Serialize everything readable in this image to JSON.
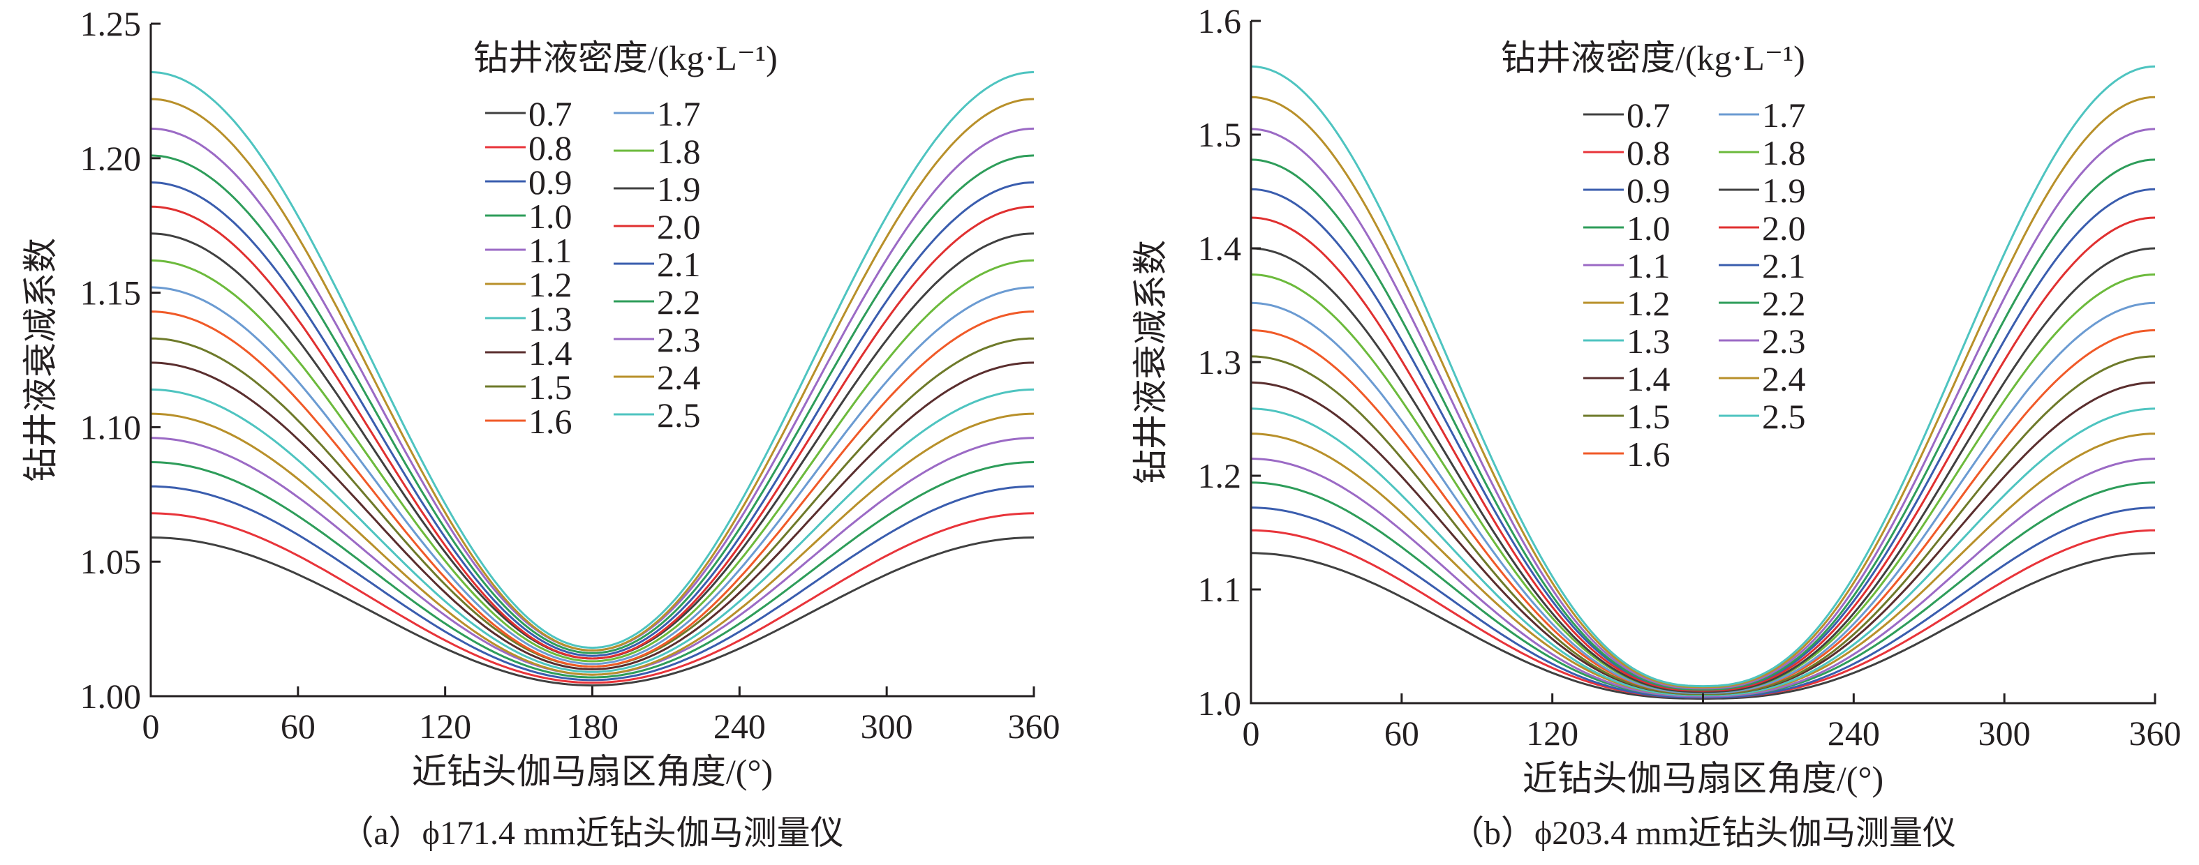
{
  "chart_data": [
    {
      "type": "line",
      "caption": "（a）ϕ171.4 mm近钻头伽马测量仪",
      "xlabel": "近钻头伽马扇区角度/(°)",
      "ylabel": "钻井液衰减系数",
      "xlim": [
        0,
        360
      ],
      "ylim": [
        1.0,
        1.25
      ],
      "xticks": [
        "0",
        "60",
        "120",
        "180",
        "240",
        "300",
        "360"
      ],
      "yticks": [
        "1.00",
        "1.05",
        "1.10",
        "1.15",
        "1.20",
        "1.25"
      ],
      "legend_title": "钻井液密度/(kg·L⁻¹)",
      "legend_position": "top-center",
      "shape": "cosine, max at 0° and 360°, min at 180°",
      "series": [
        {
          "name": "0.7",
          "color": "#404040",
          "max": 1.059,
          "min": 1.004
        },
        {
          "name": "0.8",
          "color": "#e8343a",
          "max": 1.068,
          "min": 1.005
        },
        {
          "name": "0.9",
          "color": "#3a5dae",
          "max": 1.078,
          "min": 1.006
        },
        {
          "name": "1.0",
          "color": "#2e9d5a",
          "max": 1.087,
          "min": 1.007
        },
        {
          "name": "1.1",
          "color": "#9b6ac5",
          "max": 1.096,
          "min": 1.008
        },
        {
          "name": "1.2",
          "color": "#b8902a",
          "max": 1.105,
          "min": 1.008
        },
        {
          "name": "1.3",
          "color": "#4ec4c0",
          "max": 1.114,
          "min": 1.009
        },
        {
          "name": "1.4",
          "color": "#5a2e2e",
          "max": 1.124,
          "min": 1.01
        },
        {
          "name": "1.5",
          "color": "#6e7a2a",
          "max": 1.133,
          "min": 1.011
        },
        {
          "name": "1.6",
          "color": "#f05a28",
          "max": 1.143,
          "min": 1.011
        },
        {
          "name": "1.7",
          "color": "#6b9bd2",
          "max": 1.152,
          "min": 1.012
        },
        {
          "name": "1.8",
          "color": "#6cba3c",
          "max": 1.162,
          "min": 1.013
        },
        {
          "name": "1.9",
          "color": "#404040",
          "max": 1.172,
          "min": 1.014
        },
        {
          "name": "2.0",
          "color": "#e03030",
          "max": 1.182,
          "min": 1.014
        },
        {
          "name": "2.1",
          "color": "#3a5dae",
          "max": 1.191,
          "min": 1.015
        },
        {
          "name": "2.2",
          "color": "#2e9d5a",
          "max": 1.201,
          "min": 1.016
        },
        {
          "name": "2.3",
          "color": "#9b6ac5",
          "max": 1.211,
          "min": 1.017
        },
        {
          "name": "2.4",
          "color": "#b8902a",
          "max": 1.222,
          "min": 1.017
        },
        {
          "name": "2.5",
          "color": "#4ec4c0",
          "max": 1.232,
          "min": 1.018
        }
      ]
    },
    {
      "type": "line",
      "caption": "（b）ϕ203.4 mm近钻头伽马测量仪",
      "xlabel": "近钻头伽马扇区角度/(°)",
      "ylabel": "钻井液衰减系数",
      "xlim": [
        0,
        360
      ],
      "ylim": [
        1.0,
        1.6
      ],
      "xticks": [
        "0",
        "60",
        "120",
        "180",
        "240",
        "300",
        "360"
      ],
      "yticks": [
        "1.0",
        "1.1",
        "1.2",
        "1.3",
        "1.4",
        "1.5",
        "1.6"
      ],
      "legend_title": "钻井液密度/(kg·L⁻¹)",
      "legend_position": "top-center",
      "shape": "cosine, max at 0° and 360°, min at 180°",
      "series": [
        {
          "name": "0.7",
          "color": "#404040",
          "max": 1.132,
          "min": 1.004
        },
        {
          "name": "0.8",
          "color": "#e8343a",
          "max": 1.152,
          "min": 1.005
        },
        {
          "name": "0.9",
          "color": "#3a5dae",
          "max": 1.172,
          "min": 1.005
        },
        {
          "name": "1.0",
          "color": "#2e9d5a",
          "max": 1.194,
          "min": 1.006
        },
        {
          "name": "1.1",
          "color": "#9b6ac5",
          "max": 1.215,
          "min": 1.006
        },
        {
          "name": "1.2",
          "color": "#b8902a",
          "max": 1.237,
          "min": 1.007
        },
        {
          "name": "1.3",
          "color": "#4ec4c0",
          "max": 1.259,
          "min": 1.007
        },
        {
          "name": "1.4",
          "color": "#5a2e2e",
          "max": 1.282,
          "min": 1.008
        },
        {
          "name": "1.5",
          "color": "#6e7a2a",
          "max": 1.305,
          "min": 1.008
        },
        {
          "name": "1.6",
          "color": "#f05a28",
          "max": 1.328,
          "min": 1.009
        },
        {
          "name": "1.7",
          "color": "#6b9bd2",
          "max": 1.352,
          "min": 1.009
        },
        {
          "name": "1.8",
          "color": "#6cba3c",
          "max": 1.377,
          "min": 1.01
        },
        {
          "name": "1.9",
          "color": "#404040",
          "max": 1.4,
          "min": 1.01
        },
        {
          "name": "2.0",
          "color": "#e03030",
          "max": 1.427,
          "min": 1.011
        },
        {
          "name": "2.1",
          "color": "#3a5dae",
          "max": 1.452,
          "min": 1.012
        },
        {
          "name": "2.2",
          "color": "#2e9d5a",
          "max": 1.478,
          "min": 1.012
        },
        {
          "name": "2.3",
          "color": "#9b6ac5",
          "max": 1.505,
          "min": 1.013
        },
        {
          "name": "2.4",
          "color": "#b8902a",
          "max": 1.533,
          "min": 1.014
        },
        {
          "name": "2.5",
          "color": "#4ec4c0",
          "max": 1.56,
          "min": 1.015
        }
      ]
    }
  ]
}
